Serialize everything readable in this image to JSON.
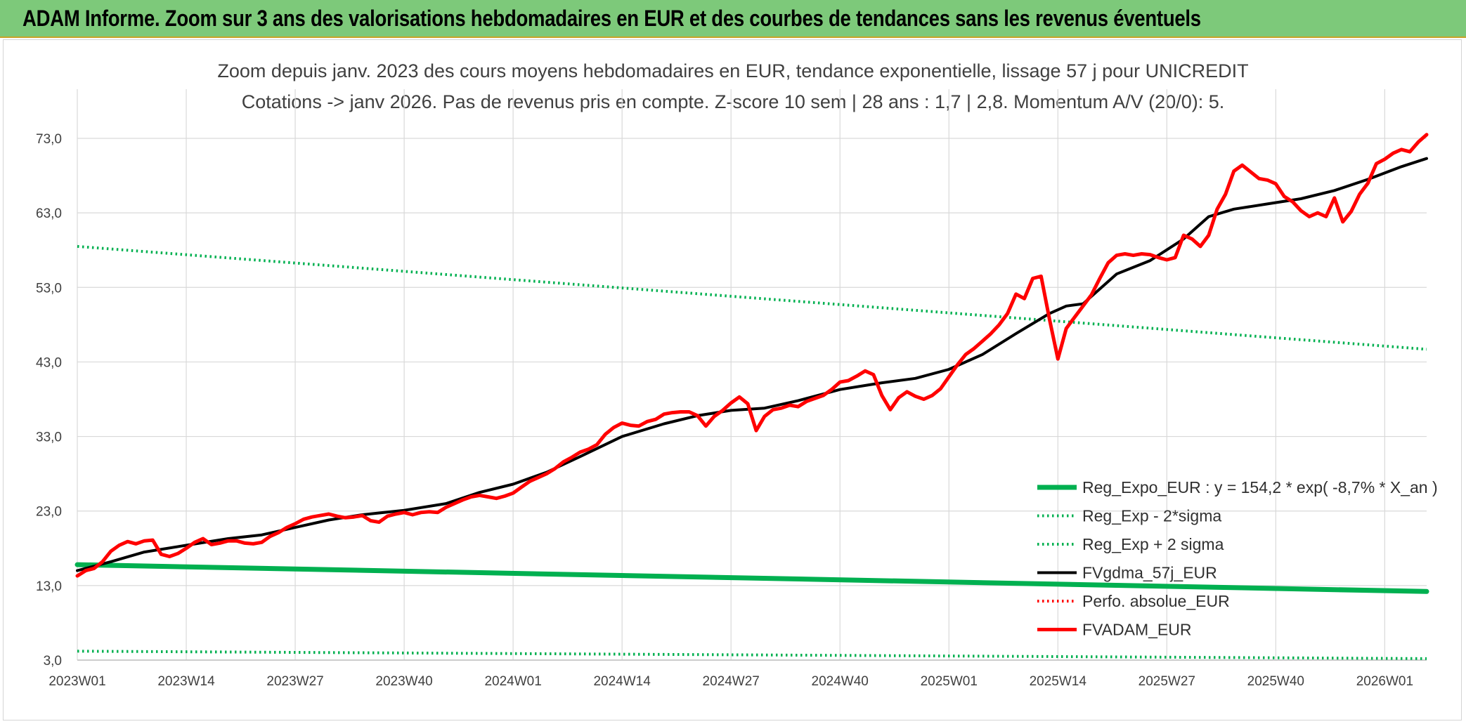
{
  "header": {
    "banner_title": "ADAM Informe. Zoom sur 3 ans des valorisations hebdomadaires en EUR et des courbes de tendances sans les revenus éventuels"
  },
  "colors": {
    "banner_bg": "#7dc97a",
    "reg_expo": "#00b050",
    "fvgdma": "#000000",
    "fvadam": "#ff0000",
    "perfo": "#ff0000",
    "grid": "#d9d9d9"
  },
  "chart_data": {
    "type": "line",
    "title": "Zoom depuis janv. 2023 des cours moyens hebdomadaires en EUR, tendance exponentielle, lissage 57 j pour UNICREDIT",
    "subtitle": "Cotations -> janv 2026. Pas de revenus pris en compte. Z-score 10 sem | 28 ans : 1,7 | 2,8. Momentum A/V (20/0): 5.",
    "xlabel": "",
    "ylabel": "",
    "x_range": [
      0,
      161
    ],
    "ylim": [
      3,
      73
    ],
    "y_ticks": [
      "3,0",
      "13,0",
      "23,0",
      "33,0",
      "43,0",
      "53,0",
      "63,0",
      "73,0"
    ],
    "y_tick_values": [
      3,
      13,
      23,
      33,
      43,
      53,
      63,
      73
    ],
    "x_tick_labels": [
      "2023W01",
      "2023W14",
      "2023W27",
      "2023W40",
      "2024W01",
      "2024W14",
      "2024W27",
      "2024W40",
      "2025W01",
      "2025W14",
      "2025W27",
      "2025W40",
      "2026W01"
    ],
    "x_tick_positions": [
      0,
      13,
      26,
      39,
      52,
      65,
      78,
      91,
      104,
      117,
      130,
      143,
      156
    ],
    "grid": true,
    "legend_position": "bottom-right",
    "series": [
      {
        "name": "Reg_Expo_EUR : y = 154,2 * exp( -8,7% *  X_an )",
        "style": "solid-thick",
        "color": "#00b050",
        "x": [
          0,
          161
        ],
        "values": [
          15.8,
          12.2
        ]
      },
      {
        "name": "Reg_Exp - 2*sigma",
        "style": "dotted",
        "color": "#00b050",
        "x": [
          0,
          161
        ],
        "values": [
          4.2,
          3.2
        ]
      },
      {
        "name": "Reg_Exp + 2 sigma",
        "style": "dotted",
        "color": "#00b050",
        "x": [
          0,
          161
        ],
        "values": [
          58.5,
          44.7
        ]
      },
      {
        "name": "FVgdma_57j_EUR",
        "style": "solid",
        "color": "#000000",
        "x": [
          0,
          4,
          8,
          13,
          18,
          22,
          26,
          30,
          34,
          39,
          44,
          48,
          52,
          56,
          60,
          65,
          70,
          74,
          78,
          82,
          86,
          91,
          96,
          100,
          104,
          108,
          112,
          116,
          118,
          120,
          124,
          128,
          132,
          135,
          138,
          142,
          146,
          150,
          154,
          158,
          161
        ],
        "values": [
          15.0,
          16.2,
          17.5,
          18.4,
          19.3,
          19.8,
          20.8,
          21.8,
          22.5,
          23.1,
          24.0,
          25.5,
          26.6,
          28.2,
          30.3,
          33.0,
          34.7,
          35.8,
          36.5,
          36.8,
          37.8,
          39.3,
          40.2,
          40.8,
          42.0,
          44.0,
          46.8,
          49.5,
          50.5,
          50.8,
          54.8,
          56.6,
          59.5,
          62.5,
          63.5,
          64.2,
          64.9,
          66.0,
          67.5,
          69.2,
          70.3
        ]
      },
      {
        "name": "Perfo. absolue_EUR",
        "style": "dotted",
        "color": "#ff0000",
        "x": [],
        "values": []
      },
      {
        "name": "FVADAM_EUR",
        "style": "solid-thick",
        "color": "#ff0000",
        "x": [
          0,
          1,
          2,
          3,
          4,
          5,
          6,
          7,
          8,
          9,
          10,
          11,
          12,
          13,
          14,
          15,
          16,
          17,
          18,
          19,
          20,
          21,
          22,
          23,
          24,
          25,
          26,
          27,
          28,
          29,
          30,
          31,
          32,
          33,
          34,
          35,
          36,
          37,
          38,
          39,
          40,
          41,
          42,
          43,
          44,
          45,
          46,
          47,
          48,
          49,
          50,
          51,
          52,
          53,
          54,
          55,
          56,
          57,
          58,
          59,
          60,
          61,
          62,
          63,
          64,
          65,
          66,
          67,
          68,
          69,
          70,
          71,
          72,
          73,
          74,
          75,
          76,
          77,
          78,
          79,
          80,
          81,
          82,
          83,
          84,
          85,
          86,
          87,
          88,
          89,
          90,
          91,
          92,
          93,
          94,
          95,
          96,
          97,
          98,
          99,
          100,
          101,
          102,
          103,
          104,
          105,
          106,
          107,
          108,
          109,
          110,
          111,
          112,
          113,
          114,
          115,
          116,
          117,
          118,
          119,
          120,
          121,
          122,
          123,
          124,
          125,
          126,
          127,
          128,
          129,
          130,
          131,
          132,
          133,
          134,
          135,
          136,
          137,
          138,
          139,
          140,
          141,
          142,
          143,
          144,
          145,
          146,
          147,
          148,
          149,
          150,
          151,
          152,
          153,
          154,
          155,
          156,
          157,
          158,
          159,
          160,
          161
        ],
        "values": [
          14.3,
          15.0,
          15.3,
          16.2,
          17.6,
          18.4,
          18.9,
          18.6,
          19.0,
          19.1,
          17.2,
          16.9,
          17.3,
          18.0,
          18.8,
          19.3,
          18.5,
          18.7,
          19.0,
          19.0,
          18.7,
          18.6,
          18.8,
          19.6,
          20.1,
          20.8,
          21.3,
          21.9,
          22.2,
          22.4,
          22.6,
          22.3,
          22.1,
          22.2,
          22.4,
          21.7,
          21.5,
          22.3,
          22.6,
          22.8,
          22.5,
          22.8,
          22.9,
          22.8,
          23.5,
          24.0,
          24.5,
          24.9,
          25.1,
          24.9,
          24.7,
          25.0,
          25.4,
          26.2,
          27.0,
          27.5,
          28.0,
          28.7,
          29.6,
          30.2,
          30.9,
          31.3,
          31.9,
          33.3,
          34.2,
          34.8,
          34.5,
          34.4,
          35.0,
          35.3,
          36.0,
          36.2,
          36.3,
          36.3,
          35.8,
          34.4,
          35.7,
          36.5,
          37.5,
          38.3,
          37.4,
          33.8,
          35.7,
          36.6,
          36.8,
          37.2,
          37.0,
          37.7,
          38.1,
          38.5,
          39.3,
          40.3,
          40.5,
          41.1,
          41.8,
          41.3,
          38.5,
          36.6,
          38.2,
          39.0,
          38.4,
          38.0,
          38.5,
          39.4,
          41.0,
          42.6,
          44.0,
          44.8,
          45.8,
          46.8,
          48.0,
          49.5,
          52.1,
          51.5,
          54.2,
          54.5,
          48.7,
          43.4,
          47.5,
          49.0,
          50.5,
          52.0,
          54.2,
          56.3,
          57.3,
          57.5,
          57.3,
          57.5,
          57.4,
          57.0,
          56.7,
          57.0,
          60.0,
          59.5,
          58.5,
          60.0,
          63.5,
          65.5,
          68.6,
          69.4,
          68.5,
          67.6,
          67.4,
          66.9,
          65.2,
          64.5,
          63.3,
          62.5,
          63.0,
          62.5,
          65.0,
          61.8,
          63.2,
          65.5,
          67.0,
          69.6,
          70.2,
          71.0,
          71.5,
          71.2,
          72.5,
          73.5
        ]
      }
    ]
  }
}
